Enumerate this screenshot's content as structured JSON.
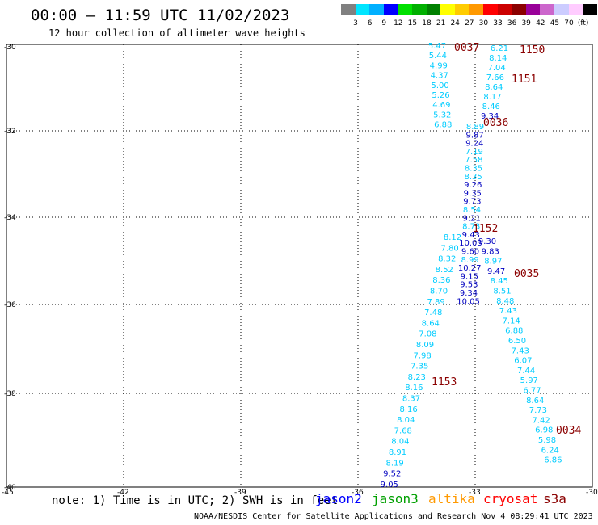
{
  "header": {
    "title": "00:00 – 11:59 UTC 11/02/2023",
    "subtitle": "12 hour collection of altimeter wave heights"
  },
  "legend": {
    "unit": "(ft)",
    "colors": [
      "#808080",
      "#00e5ff",
      "#00b0ff",
      "#0000ff",
      "#00e000",
      "#00b000",
      "#008000",
      "#ffff00",
      "#ffcc00",
      "#ff9900",
      "#ff0000",
      "#cc0000",
      "#8b0000",
      "#990099",
      "#cc66cc",
      "#ccccff",
      "#ffccff",
      "#000000"
    ],
    "ticks": [
      "3",
      "6",
      "9",
      "12",
      "15",
      "18",
      "21",
      "24",
      "27",
      "30",
      "33",
      "36",
      "39",
      "42",
      "45",
      "70"
    ]
  },
  "axes": {
    "lat_labels": [
      "-30",
      "-32",
      "-34",
      "-36",
      "-38",
      "-40"
    ],
    "lon_labels": [
      "-45",
      "-42",
      "-39",
      "-36",
      "-33",
      "-30"
    ]
  },
  "tracks": [
    {
      "pass": "0037",
      "color": "#00ccff",
      "values": [
        "5.47",
        "5.44",
        "4.99",
        "4.37",
        "5.00",
        "5.26",
        "4.69",
        "5.32",
        "6.88"
      ]
    },
    {
      "pass": "1150",
      "color": "#00ccff",
      "values": [
        "6.21",
        "8.14",
        "7.04",
        "7.66",
        "8.64",
        "8.17",
        "8.46",
        "9.34"
      ]
    },
    {
      "pass": "0036",
      "color": "#00ccff",
      "values": [
        "8.89",
        "9.87",
        "9.24",
        "7.19",
        "7.58",
        "8.35",
        "8.35",
        "9.26",
        "9.35",
        "9.73",
        "8.54",
        "9.21",
        "8.73",
        "9.43",
        "10.03",
        "9.60",
        "8.99",
        "10.27",
        "9.15",
        "9.53",
        "9.34",
        "10.05"
      ]
    },
    {
      "pass": "1152",
      "color": "#00ccff",
      "values": [
        "8.12",
        "7.80",
        "8.32",
        "8.52",
        "8.36",
        "8.70",
        "7.89",
        "7.48",
        "8.64",
        "7.08",
        "8.09",
        "7.98",
        "7.35",
        "8.23",
        "8.16",
        "8.37",
        "8.16",
        "8.04",
        "7.68",
        "8.04",
        "8.91",
        "8.19",
        "9.52",
        "9.05"
      ]
    },
    {
      "pass": "0035",
      "color": "#00ccff",
      "values": [
        "9.30",
        "9.83",
        "8.97",
        "9.47",
        "8.45",
        "8.51",
        "8.48",
        "7.43",
        "7.14",
        "6.88",
        "6.50",
        "7.43",
        "6.07",
        "7.44",
        "5.97",
        "6.77",
        "8.64",
        "7.73",
        "7.42",
        "6.98",
        "5.98",
        "6.24",
        "6.86"
      ]
    }
  ],
  "pass_labels": [
    "0037",
    "1150",
    "1151",
    "0036",
    "1152",
    "0035",
    "1153",
    "0034"
  ],
  "note": "note: 1) Time is in UTC; 2) SWH is in feet",
  "satellites": [
    {
      "name": "jason2",
      "color": "#0000ff"
    },
    {
      "name": "jason3",
      "color": "#00a000"
    },
    {
      "name": "altika",
      "color": "#ff9900"
    },
    {
      "name": "cryosat",
      "color": "#ff0000"
    },
    {
      "name": "s3a",
      "color": "#8b0000"
    }
  ],
  "footer": "NOAA/NESDIS Center for Satellite Applications and Research   Nov  4 08:29:41 UTC 2023"
}
